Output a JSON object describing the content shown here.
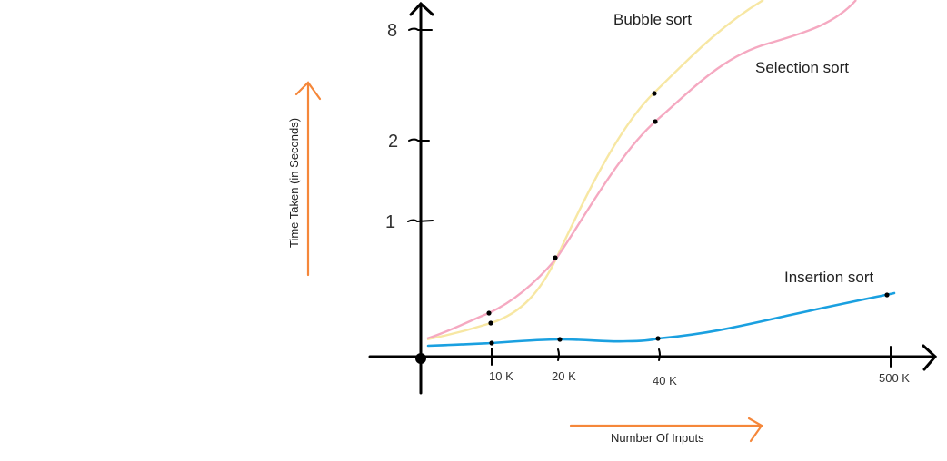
{
  "chart_data": {
    "type": "line",
    "title": "",
    "xlabel": "Number Of Inputs",
    "ylabel": "Time Taken (in Seconds)",
    "x_ticks": [
      "10 K",
      "20 K",
      "40 K",
      "500 K"
    ],
    "y_ticks": [
      "1",
      "2",
      "8"
    ],
    "grid": false,
    "legend": "labels placed next to curves",
    "series": [
      {
        "name": "Bubble sort",
        "color": "#f7e7a3",
        "points": [
          {
            "x": "10 K",
            "y": 0.3
          },
          {
            "x": "20 K",
            "y": 0.75
          },
          {
            "x": "40 K",
            "y": 4
          }
        ]
      },
      {
        "name": "Selection sort",
        "color": "#f5a9c1",
        "points": [
          {
            "x": "10 K",
            "y": 0.35
          },
          {
            "x": "20 K",
            "y": 0.75
          },
          {
            "x": "40 K",
            "y": 3
          }
        ]
      },
      {
        "name": "Insertion sort",
        "color": "#1aa0e0",
        "points": [
          {
            "x": "10 K",
            "y": 0.05
          },
          {
            "x": "20 K",
            "y": 0.06
          },
          {
            "x": "40 K",
            "y": 0.06
          },
          {
            "x": "500 K",
            "y": 0.45
          }
        ]
      }
    ],
    "colors": {
      "axis": "#000000",
      "arrow": "#f5873a",
      "marker": "#000000"
    }
  }
}
